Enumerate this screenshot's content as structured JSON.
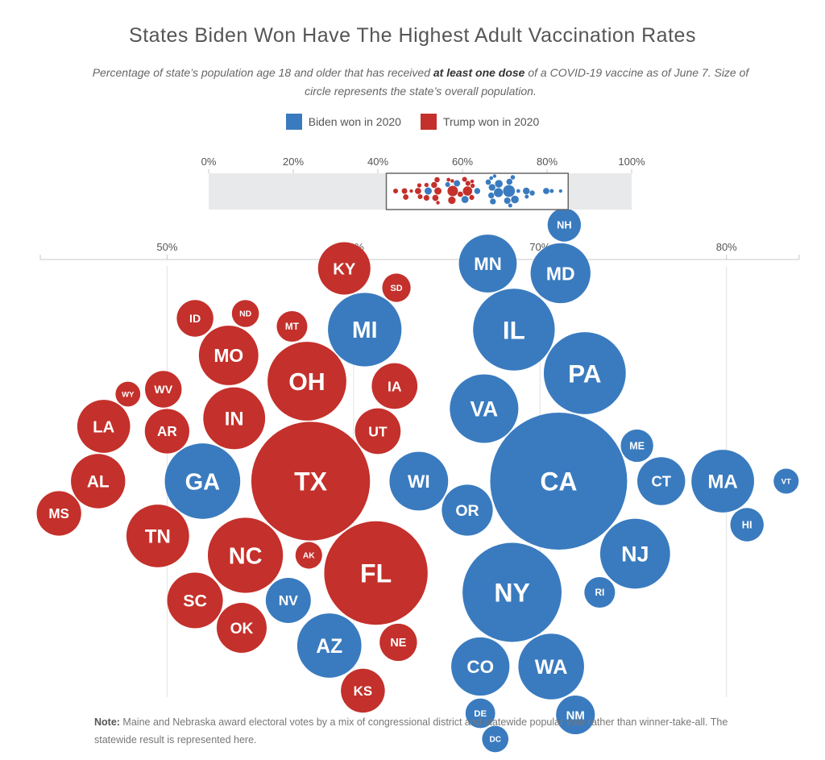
{
  "title": "States Biden Won Have The Highest Adult Vaccination Rates",
  "subtitle": {
    "part1": "Percentage of state’s population age 18 and older that has received ",
    "bold": "at least one dose",
    "part2": " of a COVID-19 vaccine as of June 7. Size of circle represents the state’s overall population."
  },
  "legend": {
    "biden_label": "Biden won in 2020",
    "trump_label": "Trump won in 2020"
  },
  "colors": {
    "biden": "#3a7bbf",
    "trump": "#c4302b",
    "track": "#e8e9eb",
    "axis": "#c8c8c8"
  },
  "overview_axis": {
    "range": [
      0,
      100
    ],
    "ticks": [
      "0%",
      "20%",
      "40%",
      "60%",
      "80%",
      "100%"
    ],
    "window": [
      42,
      85
    ]
  },
  "chart_data": {
    "type": "scatter",
    "title": "States Biden Won Have The Highest Adult Vaccination Rates",
    "xlabel": "",
    "ylabel": "",
    "xlim": [
      43.2,
      83.9
    ],
    "x_ticks": [
      "50%",
      "60%",
      "70%",
      "80%"
    ],
    "series": [
      {
        "name": "Biden won in 2020",
        "color": "#3a7bbf",
        "points": [
          {
            "label": "MD",
            "x": 71.1,
            "pop": 6.2
          },
          {
            "label": "RI",
            "x": 73.2,
            "pop": 1.1
          },
          {
            "label": "MN",
            "x": 67.2,
            "pop": 5.7
          },
          {
            "label": "WA",
            "x": 70.6,
            "pop": 7.7
          },
          {
            "label": "OR",
            "x": 66.1,
            "pop": 4.2
          },
          {
            "label": "NY",
            "x": 68.5,
            "pop": 19.5
          },
          {
            "label": "PA",
            "x": 72.4,
            "pop": 12.8
          },
          {
            "label": "NH",
            "x": 71.3,
            "pop": 1.4
          },
          {
            "label": "NJ",
            "x": 75.1,
            "pop": 8.9
          },
          {
            "label": "DE",
            "x": 66.8,
            "pop": 1.0
          },
          {
            "label": "DC",
            "x": 67.6,
            "pop": 0.7
          },
          {
            "label": "CT",
            "x": 76.5,
            "pop": 3.6
          },
          {
            "label": "CO",
            "x": 66.8,
            "pop": 5.8
          },
          {
            "label": "CA",
            "x": 71.0,
            "pop": 39.5
          },
          {
            "label": "ME",
            "x": 75.2,
            "pop": 1.3
          },
          {
            "label": "VA",
            "x": 67.0,
            "pop": 8.5
          },
          {
            "label": "NM",
            "x": 71.9,
            "pop": 2.1
          },
          {
            "label": "IL",
            "x": 68.6,
            "pop": 12.7
          },
          {
            "label": "GA",
            "x": 51.9,
            "pop": 10.6
          },
          {
            "label": "NV",
            "x": 56.5,
            "pop": 3.1
          },
          {
            "label": "AZ",
            "x": 58.7,
            "pop": 7.3
          },
          {
            "label": "WI",
            "x": 63.5,
            "pop": 5.9
          },
          {
            "label": "MI",
            "x": 60.6,
            "pop": 10.0
          },
          {
            "label": "MA",
            "x": 79.8,
            "pop": 6.9
          },
          {
            "label": "HI",
            "x": 81.1,
            "pop": 1.4
          },
          {
            "label": "VT",
            "x": 83.2,
            "pop": 0.6
          }
        ]
      },
      {
        "name": "Trump won in 2020",
        "color": "#c4302b",
        "points": [
          {
            "label": "OH",
            "x": 57.5,
            "pop": 11.7
          },
          {
            "label": "FL",
            "x": 61.2,
            "pop": 21.5
          },
          {
            "label": "AK",
            "x": 57.6,
            "pop": 0.73
          },
          {
            "label": "OK",
            "x": 54.0,
            "pop": 4.0
          },
          {
            "label": "ND",
            "x": 54.2,
            "pop": 0.76
          },
          {
            "label": "AR",
            "x": 50.0,
            "pop": 3.0
          },
          {
            "label": "ID",
            "x": 51.5,
            "pop": 1.8
          },
          {
            "label": "NC",
            "x": 54.2,
            "pop": 10.5
          },
          {
            "label": "KS",
            "x": 60.5,
            "pop": 2.9
          },
          {
            "label": "SD",
            "x": 62.3,
            "pop": 0.88
          },
          {
            "label": "AL",
            "x": 46.3,
            "pop": 4.9
          },
          {
            "label": "WY",
            "x": 47.9,
            "pop": 0.58
          },
          {
            "label": "MS",
            "x": 44.2,
            "pop": 3.0
          },
          {
            "label": "WV",
            "x": 49.8,
            "pop": 1.8
          },
          {
            "label": "MT",
            "x": 56.7,
            "pop": 1.1
          },
          {
            "label": "KY",
            "x": 59.5,
            "pop": 4.5
          },
          {
            "label": "UT",
            "x": 61.3,
            "pop": 3.2
          },
          {
            "label": "LA",
            "x": 46.6,
            "pop": 4.6
          },
          {
            "label": "SC",
            "x": 51.5,
            "pop": 5.2
          },
          {
            "label": "TN",
            "x": 49.5,
            "pop": 6.9
          },
          {
            "label": "IN",
            "x": 53.6,
            "pop": 6.7
          },
          {
            "label": "IA",
            "x": 62.2,
            "pop": 3.2
          },
          {
            "label": "TX",
            "x": 57.7,
            "pop": 29.0
          },
          {
            "label": "MO",
            "x": 53.3,
            "pop": 6.1
          },
          {
            "label": "NE",
            "x": 62.4,
            "pop": 1.9
          }
        ]
      }
    ]
  },
  "note": {
    "label": "Note:",
    "text": " Maine and Nebraska award electoral votes by a mix of congressional district and statewide popular vote rather than winner-take-all. The statewide result is represented here."
  }
}
